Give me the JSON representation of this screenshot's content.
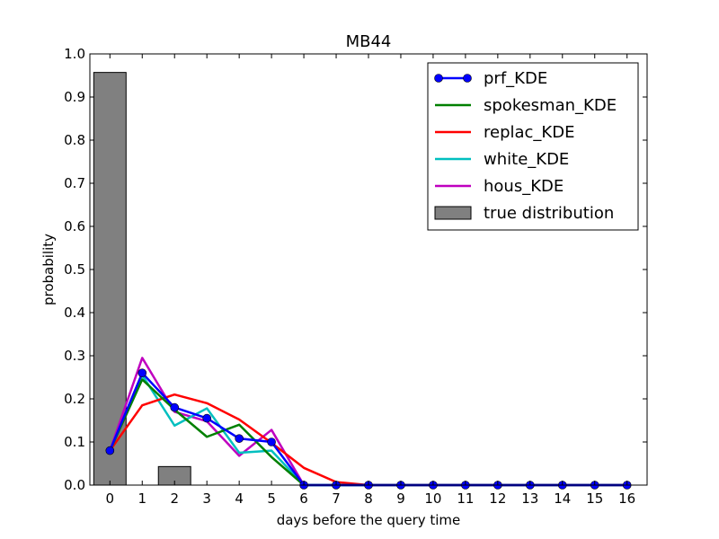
{
  "chart_data": {
    "type": "line",
    "title": "MB44",
    "xlabel": "days before the query time",
    "ylabel": "probability",
    "x": [
      0,
      1,
      2,
      3,
      4,
      5,
      6,
      7,
      8,
      9,
      10,
      11,
      12,
      13,
      14,
      15,
      16
    ],
    "xlim": [
      -0.62,
      16.62
    ],
    "ylim": [
      0,
      1.0
    ],
    "yticks": [
      0.0,
      0.1,
      0.2,
      0.3,
      0.4,
      0.5,
      0.6,
      0.7,
      0.8,
      0.9,
      1.0
    ],
    "ytick_labels": [
      "0.0",
      "0.1",
      "0.2",
      "0.3",
      "0.4",
      "0.5",
      "0.6",
      "0.7",
      "0.8",
      "0.9",
      "1.0"
    ],
    "grid": false,
    "legend_position": "top-right",
    "series": [
      {
        "name": "prf_KDE",
        "color": "#0000ff",
        "marker": "circle",
        "values": [
          0.08,
          0.26,
          0.18,
          0.155,
          0.108,
          0.1,
          0,
          0,
          0,
          0,
          0,
          0,
          0,
          0,
          0,
          0,
          0
        ]
      },
      {
        "name": "spokesman_KDE",
        "color": "#008000",
        "marker": "none",
        "values": [
          0.08,
          0.245,
          0.175,
          0.112,
          0.14,
          0.065,
          0,
          0,
          0,
          0,
          0,
          0,
          0,
          0,
          0,
          0,
          0
        ]
      },
      {
        "name": "replac_KDE",
        "color": "#ff0000",
        "marker": "none",
        "values": [
          0.08,
          0.185,
          0.21,
          0.19,
          0.152,
          0.098,
          0.04,
          0.007,
          0,
          0,
          0,
          0,
          0,
          0,
          0,
          0,
          0
        ]
      },
      {
        "name": "white_KDE",
        "color": "#00bfbf",
        "marker": "none",
        "values": [
          0.08,
          0.255,
          0.138,
          0.178,
          0.075,
          0.08,
          0,
          0,
          0,
          0,
          0,
          0,
          0,
          0,
          0,
          0,
          0
        ]
      },
      {
        "name": "hous_KDE",
        "color": "#bf00bf",
        "marker": "none",
        "values": [
          0.08,
          0.295,
          0.17,
          0.148,
          0.068,
          0.128,
          0,
          0,
          0,
          0,
          0,
          0,
          0,
          0,
          0,
          0,
          0
        ]
      }
    ],
    "bars": {
      "name": "true distribution",
      "color": "#808080",
      "values": [
        0.957,
        0,
        0.043,
        0,
        0,
        0,
        0,
        0,
        0,
        0,
        0,
        0,
        0,
        0,
        0,
        0,
        0
      ]
    }
  }
}
